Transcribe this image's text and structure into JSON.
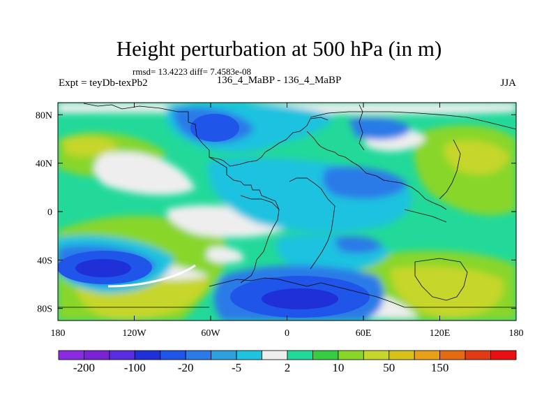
{
  "title": "Height perturbation at 500 hPa (in m)",
  "stats": "rmsd= 13.4223 diff= 7.4583e-08",
  "left_label": "Expt = teyDb-texPb2",
  "center_label": "136_4_MaBP - 136_4_MaBP",
  "right_label": "JJA",
  "axes": {
    "x_ticks": [
      {
        "label": "180",
        "value": -180
      },
      {
        "label": "120W",
        "value": -120
      },
      {
        "label": "60W",
        "value": -60
      },
      {
        "label": "0",
        "value": 0
      },
      {
        "label": "60E",
        "value": 60
      },
      {
        "label": "120E",
        "value": 120
      },
      {
        "label": "180",
        "value": 180
      }
    ],
    "y_ticks": [
      {
        "label": "80N",
        "value": 80
      },
      {
        "label": "40N",
        "value": 40
      },
      {
        "label": "0",
        "value": 0
      },
      {
        "label": "40S",
        "value": -40
      },
      {
        "label": "80S",
        "value": -80
      }
    ],
    "lon_range": [
      -180,
      180
    ],
    "lat_range": [
      -90,
      90
    ]
  },
  "colorbar": {
    "colors": [
      "#8a2be2",
      "#7a22d4",
      "#5a2ce0",
      "#2030d8",
      "#1f55e8",
      "#2a7ae8",
      "#2f9edf",
      "#1fc2df",
      "#eeeeee",
      "#22d99a",
      "#38cc44",
      "#88d62a",
      "#c6d62a",
      "#d8c21a",
      "#e8a018",
      "#e36a10",
      "#e23a12",
      "#e81010"
    ],
    "labels": [
      {
        "text": "-200",
        "boundary": 1
      },
      {
        "text": "-100",
        "boundary": 3
      },
      {
        "text": "-20",
        "boundary": 5
      },
      {
        "text": "-5",
        "boundary": 7
      },
      {
        "text": "2",
        "boundary": 9
      },
      {
        "text": "10",
        "boundary": 11
      },
      {
        "text": "50",
        "boundary": 13
      },
      {
        "text": "150",
        "boundary": 15
      }
    ]
  },
  "field_regions": [
    {
      "name": "background",
      "color": "#22d99a"
    },
    {
      "name": "southern-ocean-south-pacific-anomaly",
      "color": "#2030d8"
    },
    {
      "name": "antarctic-anomaly",
      "color": "#1f55e8"
    },
    {
      "name": "north-pacific-anomaly",
      "color": "#1f55e8"
    },
    {
      "name": "south-pacific-positive-band",
      "color": "#c6d62a"
    },
    {
      "name": "indian-ocean-positive-anomaly",
      "color": "#c6d62a"
    },
    {
      "name": "arctic-near-zero",
      "color": "#eeeeee"
    }
  ]
}
